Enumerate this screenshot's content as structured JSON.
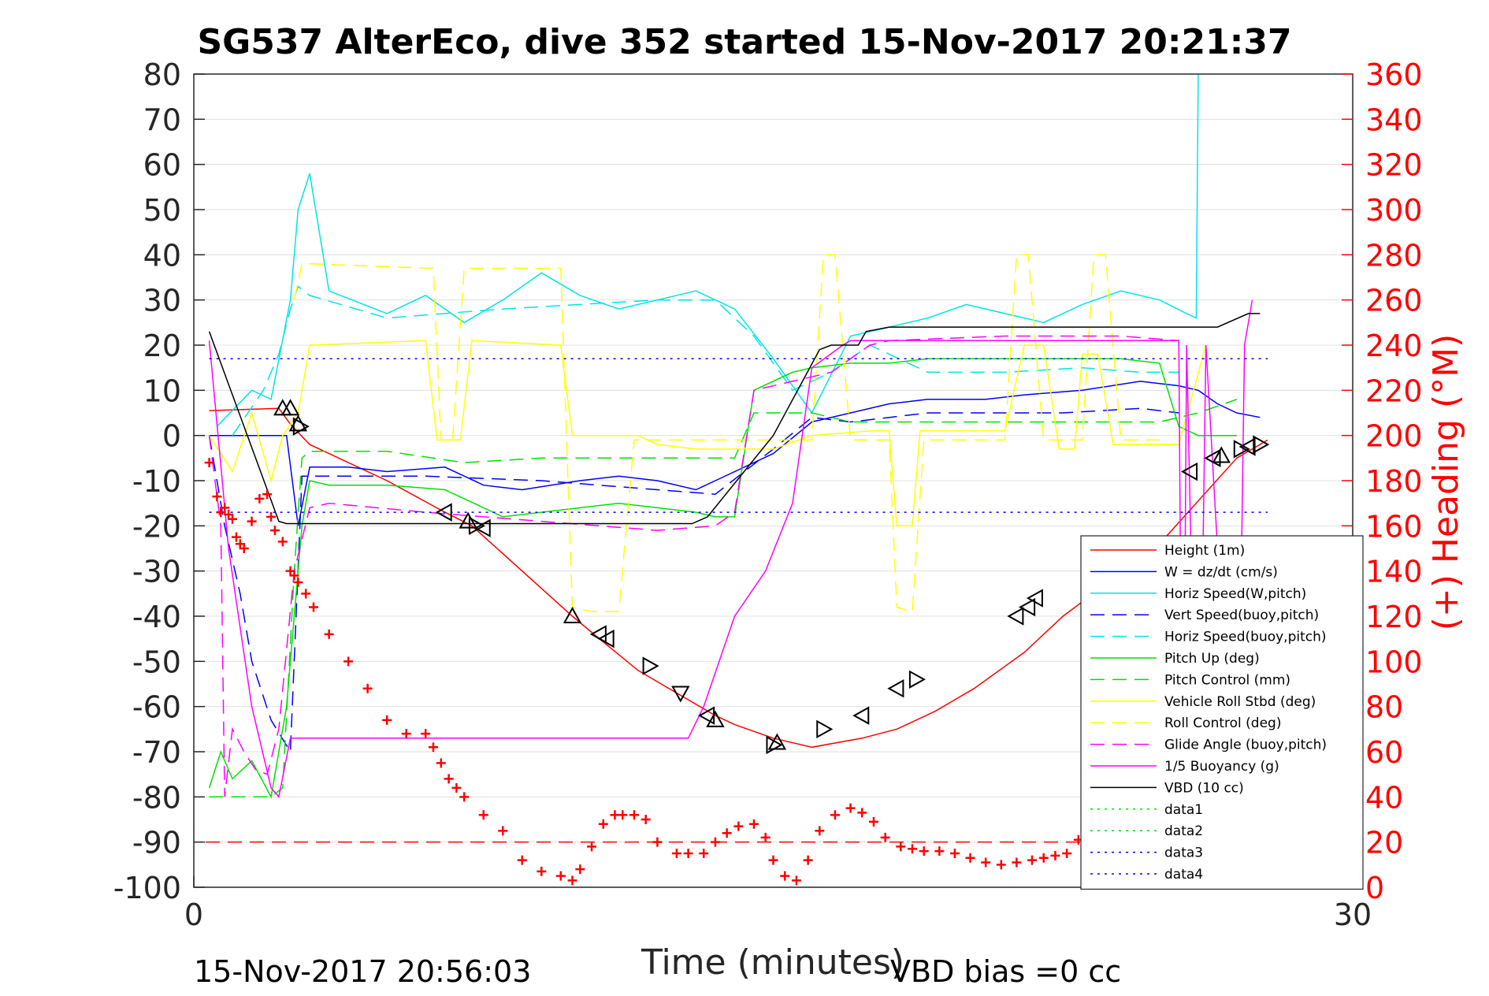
{
  "chart_data": {
    "type": "line",
    "title": "SG537 AlterEco, dive 352 started 15-Nov-2017 20:21:37",
    "xlabel": "Time (minutes)",
    "ylabel_right": "(+) Heading (°M)",
    "footer_left": "15-Nov-2017 20:56:03",
    "footer_right": "VBD bias =0 cc",
    "xlim": [
      0,
      30
    ],
    "ylim": [
      -100,
      80
    ],
    "y2lim": [
      0,
      360
    ],
    "xticks": [
      0,
      30
    ],
    "yticks": [
      80,
      70,
      60,
      50,
      40,
      30,
      20,
      10,
      0,
      -10,
      -20,
      -30,
      -40,
      -50,
      -60,
      -70,
      -80,
      -90,
      -100
    ],
    "y2ticks": [
      360,
      340,
      320,
      300,
      280,
      260,
      240,
      220,
      200,
      180,
      160,
      140,
      120,
      100,
      80,
      60,
      40,
      20,
      0
    ],
    "grid": true,
    "legend_position": "lower-right",
    "series": [
      {
        "name": "Height (1m)",
        "color": "#ff0000",
        "dash": "solid",
        "axis": "left",
        "x": [
          0.4,
          2.2,
          2.5,
          3.0,
          5.0,
          6.5,
          7.2,
          9.8,
          10.5,
          11.5,
          12.5,
          13.5,
          14.0,
          15.0,
          16.0,
          17.3,
          18.2,
          19.2,
          20.2,
          21.5,
          22.5,
          25.0,
          27.0,
          27.8
        ],
        "y": [
          5.5,
          6,
          2.5,
          -2,
          -10,
          -17,
          -20,
          -40,
          -45,
          -52,
          -57,
          -62,
          -64,
          -67,
          -69,
          -67,
          -65,
          -61,
          -56,
          -48,
          -40,
          -24,
          -5,
          -1
        ]
      },
      {
        "name": "W = dz/dt (cm/s)",
        "color": "#0000ff",
        "dash": "solid",
        "axis": "left",
        "x": [
          0.4,
          2.0,
          2.4,
          2.7,
          3.0,
          4.0,
          5.0,
          6.5,
          7.5,
          8.5,
          10.0,
          11.0,
          12.0,
          13.0,
          13.5,
          14.5,
          15.0,
          16.0,
          17.0,
          18.0,
          19.0,
          20.5,
          21.5,
          23.0,
          24.5,
          25.5,
          26.0,
          26.5,
          27.0,
          27.6
        ],
        "y": [
          0,
          0,
          0,
          -20,
          -7,
          -7,
          -8,
          -7,
          -11,
          -12,
          -10,
          -9,
          -10,
          -12,
          -10,
          -6,
          -4,
          3,
          5,
          7,
          8,
          8,
          9,
          10,
          12,
          11,
          10,
          7,
          5,
          4
        ]
      },
      {
        "name": "Horiz Speed(W,pitch)",
        "color": "#00e5e5",
        "dash": "solid",
        "axis": "left",
        "x": [
          0.6,
          1.5,
          2.0,
          2.5,
          2.7,
          3.0,
          3.5,
          5.0,
          6.0,
          7.0,
          8.0,
          9.0,
          10.0,
          11.0,
          12.0,
          13.0,
          14.0,
          15.0,
          16.0,
          17.0,
          18.0,
          19.0,
          20.0,
          21.0,
          22.0,
          23.0,
          24.0,
          25.0,
          25.7,
          25.95,
          26.0
        ],
        "y": [
          2,
          10,
          8,
          30,
          50,
          58,
          32,
          27,
          31,
          25,
          30,
          36,
          31,
          28,
          30,
          32,
          28,
          17,
          5,
          22,
          24,
          26,
          29,
          27,
          25,
          29,
          32,
          30,
          27,
          26,
          80
        ]
      },
      {
        "name": "Vert Speed(buoy,pitch)",
        "color": "#0000ff",
        "dash": "dash",
        "axis": "left",
        "x": [
          0.4,
          0.8,
          1.2,
          1.5,
          2.0,
          2.5,
          2.8,
          3.5,
          6.0,
          9.0,
          12.0,
          13.5,
          15.0,
          16.0,
          17.0,
          19.0,
          21.0,
          22.5,
          24.5,
          25.5
        ],
        "y": [
          0,
          -20,
          -35,
          -50,
          -63,
          -70,
          -9,
          -9,
          -9,
          -10,
          -12,
          -13,
          -3,
          4,
          3,
          5,
          5,
          5,
          6,
          5
        ]
      },
      {
        "name": "Horiz Speed(buoy,pitch)",
        "color": "#00e5e5",
        "dash": "dash",
        "axis": "left",
        "x": [
          1.0,
          1.8,
          2.2,
          2.5,
          2.7,
          3.0,
          5.0,
          8.0,
          10.0,
          12.0,
          13.5,
          14.5,
          15.5,
          16.5,
          17.5,
          19.0,
          21.0,
          23.0,
          24.5,
          25.5
        ],
        "y": [
          0,
          10,
          18,
          28,
          33,
          31,
          26,
          28,
          29,
          30,
          30,
          22,
          10,
          14,
          20,
          14,
          14,
          15,
          14,
          14
        ]
      },
      {
        "name": "Pitch Up (deg)",
        "color": "#00e000",
        "dash": "solid",
        "axis": "left",
        "x": [
          0.4,
          0.7,
          1.0,
          1.5,
          2.0,
          2.4,
          2.8,
          3.0,
          3.5,
          5.0,
          6.5,
          7.0,
          8.0,
          9.0,
          10.0,
          11.0,
          12.0,
          13.0,
          13.5,
          14.0,
          14.5,
          15.5,
          16.0,
          17.0,
          18.0,
          19.0,
          20.0,
          21.0,
          22.0,
          23.0,
          24.0,
          25.0,
          25.5,
          26.0,
          27.0
        ],
        "y": [
          -78,
          -70,
          -76,
          -72,
          -80,
          -60,
          -20,
          -10,
          -11,
          -11,
          -12,
          -14,
          -18,
          -17,
          -16,
          -15,
          -16,
          -17,
          -18,
          -18,
          10,
          14,
          15,
          16,
          16,
          17,
          17,
          17,
          17,
          17,
          17,
          16,
          2,
          0,
          0
        ]
      },
      {
        "name": "Pitch Control (mm)",
        "color": "#00e000",
        "dash": "dash",
        "axis": "left",
        "x": [
          0.4,
          2.0,
          2.3,
          2.6,
          2.8,
          3.0,
          5.0,
          7.0,
          9.0,
          12.0,
          13.5,
          14.0,
          14.5,
          15.5,
          16.0,
          17.0,
          19.0,
          21.0,
          23.0,
          25.0,
          26.0,
          27.0
        ],
        "y": [
          -80,
          -80,
          -78,
          -30,
          -5,
          -3.5,
          -3.5,
          -6,
          -5,
          -5,
          -5,
          -5,
          5,
          5,
          5,
          3,
          3,
          3,
          3,
          3,
          5,
          8
        ]
      },
      {
        "name": "Vehicle Roll Stbd (deg)",
        "color": "#ffff00",
        "dash": "solid",
        "axis": "left",
        "x": [
          0.4,
          1.0,
          1.5,
          2.0,
          2.3,
          2.7,
          3.0,
          6.0,
          6.3,
          6.6,
          6.9,
          7.2,
          9.5,
          9.8,
          10.0,
          11.5,
          12.0,
          13.0,
          15.0,
          16.0,
          17.5,
          18.0,
          18.2,
          18.6,
          18.8,
          19.0,
          19.3,
          21.0,
          21.5,
          22.0,
          22.4,
          22.8,
          23.0,
          23.4,
          23.8,
          25.5,
          26.2
        ],
        "y": [
          0,
          -8,
          5,
          -10,
          0,
          5,
          20,
          21,
          -1,
          -1,
          -1,
          21,
          20,
          0,
          0,
          0,
          -2,
          -3,
          -3,
          0,
          1,
          1,
          -20,
          -20,
          1,
          1,
          1,
          1,
          20,
          20,
          -3,
          -3,
          18,
          18,
          -2,
          -2,
          20
        ]
      },
      {
        "name": "Roll Control (deg)",
        "color": "#ffff00",
        "dash": "dash",
        "axis": "left",
        "x": [
          2.6,
          2.8,
          3.0,
          6.2,
          6.4,
          6.7,
          7.0,
          9.5,
          9.8,
          10.3,
          11.0,
          11.4,
          13.0,
          16.0,
          16.3,
          16.6,
          17.0,
          18.0,
          18.2,
          18.6,
          18.9,
          21.0,
          21.3,
          21.6,
          22.0,
          23.0,
          23.3,
          23.6,
          24.0,
          25.0
        ],
        "y": [
          30,
          38,
          38,
          37,
          -1,
          -1,
          37,
          37,
          -38,
          -39,
          -39,
          -1,
          -1,
          -1,
          40,
          40,
          -1,
          -1,
          -38,
          -39,
          -1,
          -1,
          40,
          40,
          -1,
          -1,
          40,
          40,
          -1,
          -1
        ]
      },
      {
        "name": "Glide Angle (buoy,pitch)",
        "color": "#ff00ff",
        "dash": "dash",
        "axis": "left",
        "x": [
          0.4,
          0.7,
          0.8,
          1.0,
          1.3,
          1.6,
          1.9,
          2.2,
          2.6,
          3.0,
          3.5,
          6.0,
          9.0,
          12.0,
          13.5,
          14.0,
          14.5,
          15.5,
          16.5,
          17.5,
          18.0,
          21.0,
          24.0,
          25.5
        ],
        "y": [
          0,
          -20,
          -80,
          -65,
          -70,
          -74,
          -75,
          -65,
          -30,
          -16,
          -15,
          -17,
          -19,
          -21,
          -20,
          -17,
          10,
          12,
          14,
          20,
          21,
          22,
          22,
          21
        ]
      },
      {
        "name": "1/5 Buoyancy (g)",
        "color": "#ff00ff",
        "dash": "solid",
        "axis": "left",
        "x": [
          0.4,
          0.9,
          1.5,
          2.0,
          2.2,
          2.5,
          12.8,
          13.2,
          14.0,
          14.8,
          15.5,
          16.0,
          16.8,
          17.0,
          25.5,
          25.6,
          25.7,
          26.0,
          26.2,
          27.0,
          27.2,
          27.4
        ],
        "y": [
          21,
          -25,
          -60,
          -78,
          -80,
          -67,
          -67,
          -60,
          -40,
          -30,
          -15,
          15,
          20,
          21,
          21,
          -100,
          20,
          -100,
          20,
          -100,
          20,
          30
        ]
      },
      {
        "name": "VBD (10 cc)",
        "color": "#000000",
        "dash": "solid",
        "axis": "left",
        "x": [
          0.4,
          2.2,
          2.4,
          12.9,
          13.3,
          15.0,
          16.2,
          16.5,
          17.2,
          17.4,
          18.0,
          26.5,
          27.3,
          27.6
        ],
        "y": [
          23,
          -19,
          -19.5,
          -19.5,
          -18,
          0,
          19,
          20,
          20,
          23,
          24,
          24,
          27,
          27
        ]
      },
      {
        "name": "data1",
        "color": "#00e000",
        "dash": "dot",
        "axis": "left",
        "x": [],
        "y": []
      },
      {
        "name": "data2",
        "color": "#00e000",
        "dash": "dot",
        "axis": "left",
        "x": [],
        "y": []
      },
      {
        "name": "data3",
        "color": "#0000ff",
        "dash": "dot",
        "axis": "left",
        "x": [
          0.4,
          27.8
        ],
        "y": [
          17,
          17
        ]
      },
      {
        "name": "data4",
        "color": "#0000ff",
        "dash": "dot",
        "axis": "left",
        "x": [
          0.4,
          27.8
        ],
        "y": [
          -17,
          -17
        ]
      }
    ],
    "reference_line": {
      "color": "#ff0000",
      "dash": "dash",
      "axis": "right",
      "y": 20
    },
    "heading_series": {
      "color": "#ff0000",
      "marker": "+",
      "axis": "right",
      "x": [
        0.4,
        0.6,
        0.7,
        0.8,
        0.9,
        1.0,
        1.1,
        1.2,
        1.3,
        1.5,
        1.7,
        1.9,
        2.0,
        2.1,
        2.3,
        2.5,
        2.6,
        2.7,
        2.9,
        3.1,
        3.5,
        4.0,
        4.5,
        5.0,
        5.5,
        6.0,
        6.2,
        6.4,
        6.6,
        6.8,
        7.0,
        7.5,
        8.0,
        8.5,
        9.0,
        9.5,
        9.8,
        10.0,
        10.3,
        10.6,
        10.9,
        11.1,
        11.4,
        11.7,
        12.0,
        12.5,
        12.8,
        13.2,
        13.5,
        13.8,
        14.1,
        14.5,
        14.8,
        15.0,
        15.3,
        15.6,
        15.9,
        16.2,
        16.6,
        17.0,
        17.3,
        17.6,
        17.9,
        18.3,
        18.6,
        18.9,
        19.3,
        19.7,
        20.1,
        20.5,
        20.9,
        21.3,
        21.7,
        22.0,
        22.3,
        22.6,
        22.9,
        23.2,
        23.5,
        23.8
      ],
      "y": [
        188,
        173,
        166,
        168,
        165,
        163,
        155,
        152,
        150,
        162,
        172,
        174,
        164,
        158,
        153,
        140,
        138,
        135,
        130,
        124,
        112,
        100,
        88,
        74,
        68,
        68,
        62,
        55,
        48,
        44,
        40,
        32,
        25,
        12,
        7,
        5,
        3,
        8,
        18,
        28,
        32,
        32,
        32,
        30,
        20,
        15,
        15,
        15,
        20,
        24,
        27,
        28,
        22,
        12,
        5,
        3,
        12,
        25,
        32,
        35,
        33,
        29,
        22,
        18,
        17,
        16,
        16,
        15,
        13,
        11,
        10,
        11,
        12,
        13,
        14,
        15,
        21,
        22,
        20,
        18
      ]
    },
    "triangle_markers": {
      "color": "#000000",
      "axis": "left",
      "points": [
        {
          "x": 2.3,
          "y": 6,
          "dir": "up"
        },
        {
          "x": 2.5,
          "y": 6,
          "dir": "up"
        },
        {
          "x": 2.7,
          "y": 2.5,
          "dir": "up"
        },
        {
          "x": 2.75,
          "y": 2,
          "dir": "right"
        },
        {
          "x": 6.5,
          "y": -17,
          "dir": "left"
        },
        {
          "x": 7.1,
          "y": -19,
          "dir": "up"
        },
        {
          "x": 7.3,
          "y": -20,
          "dir": "right"
        },
        {
          "x": 7.5,
          "y": -20.5,
          "dir": "left"
        },
        {
          "x": 9.8,
          "y": -40,
          "dir": "up"
        },
        {
          "x": 10.5,
          "y": -44,
          "dir": "left"
        },
        {
          "x": 10.7,
          "y": -45,
          "dir": "left"
        },
        {
          "x": 11.8,
          "y": -51,
          "dir": "right"
        },
        {
          "x": 12.6,
          "y": -57,
          "dir": "down"
        },
        {
          "x": 13.3,
          "y": -62,
          "dir": "left"
        },
        {
          "x": 13.5,
          "y": -63,
          "dir": "up"
        },
        {
          "x": 15.1,
          "y": -68,
          "dir": "up"
        },
        {
          "x": 15.0,
          "y": -68.5,
          "dir": "right"
        },
        {
          "x": 16.3,
          "y": -65,
          "dir": "right"
        },
        {
          "x": 17.3,
          "y": -62,
          "dir": "left"
        },
        {
          "x": 18.2,
          "y": -56,
          "dir": "left"
        },
        {
          "x": 18.7,
          "y": -54,
          "dir": "right"
        },
        {
          "x": 21.3,
          "y": -40,
          "dir": "left"
        },
        {
          "x": 21.6,
          "y": -38,
          "dir": "left"
        },
        {
          "x": 21.8,
          "y": -36,
          "dir": "left"
        },
        {
          "x": 25.8,
          "y": -8,
          "dir": "left"
        },
        {
          "x": 26.4,
          "y": -5,
          "dir": "left"
        },
        {
          "x": 26.6,
          "y": -4.5,
          "dir": "up"
        },
        {
          "x": 27.1,
          "y": -3,
          "dir": "right"
        },
        {
          "x": 27.3,
          "y": -2.5,
          "dir": "left"
        },
        {
          "x": 27.6,
          "y": -2,
          "dir": "right"
        }
      ]
    }
  }
}
